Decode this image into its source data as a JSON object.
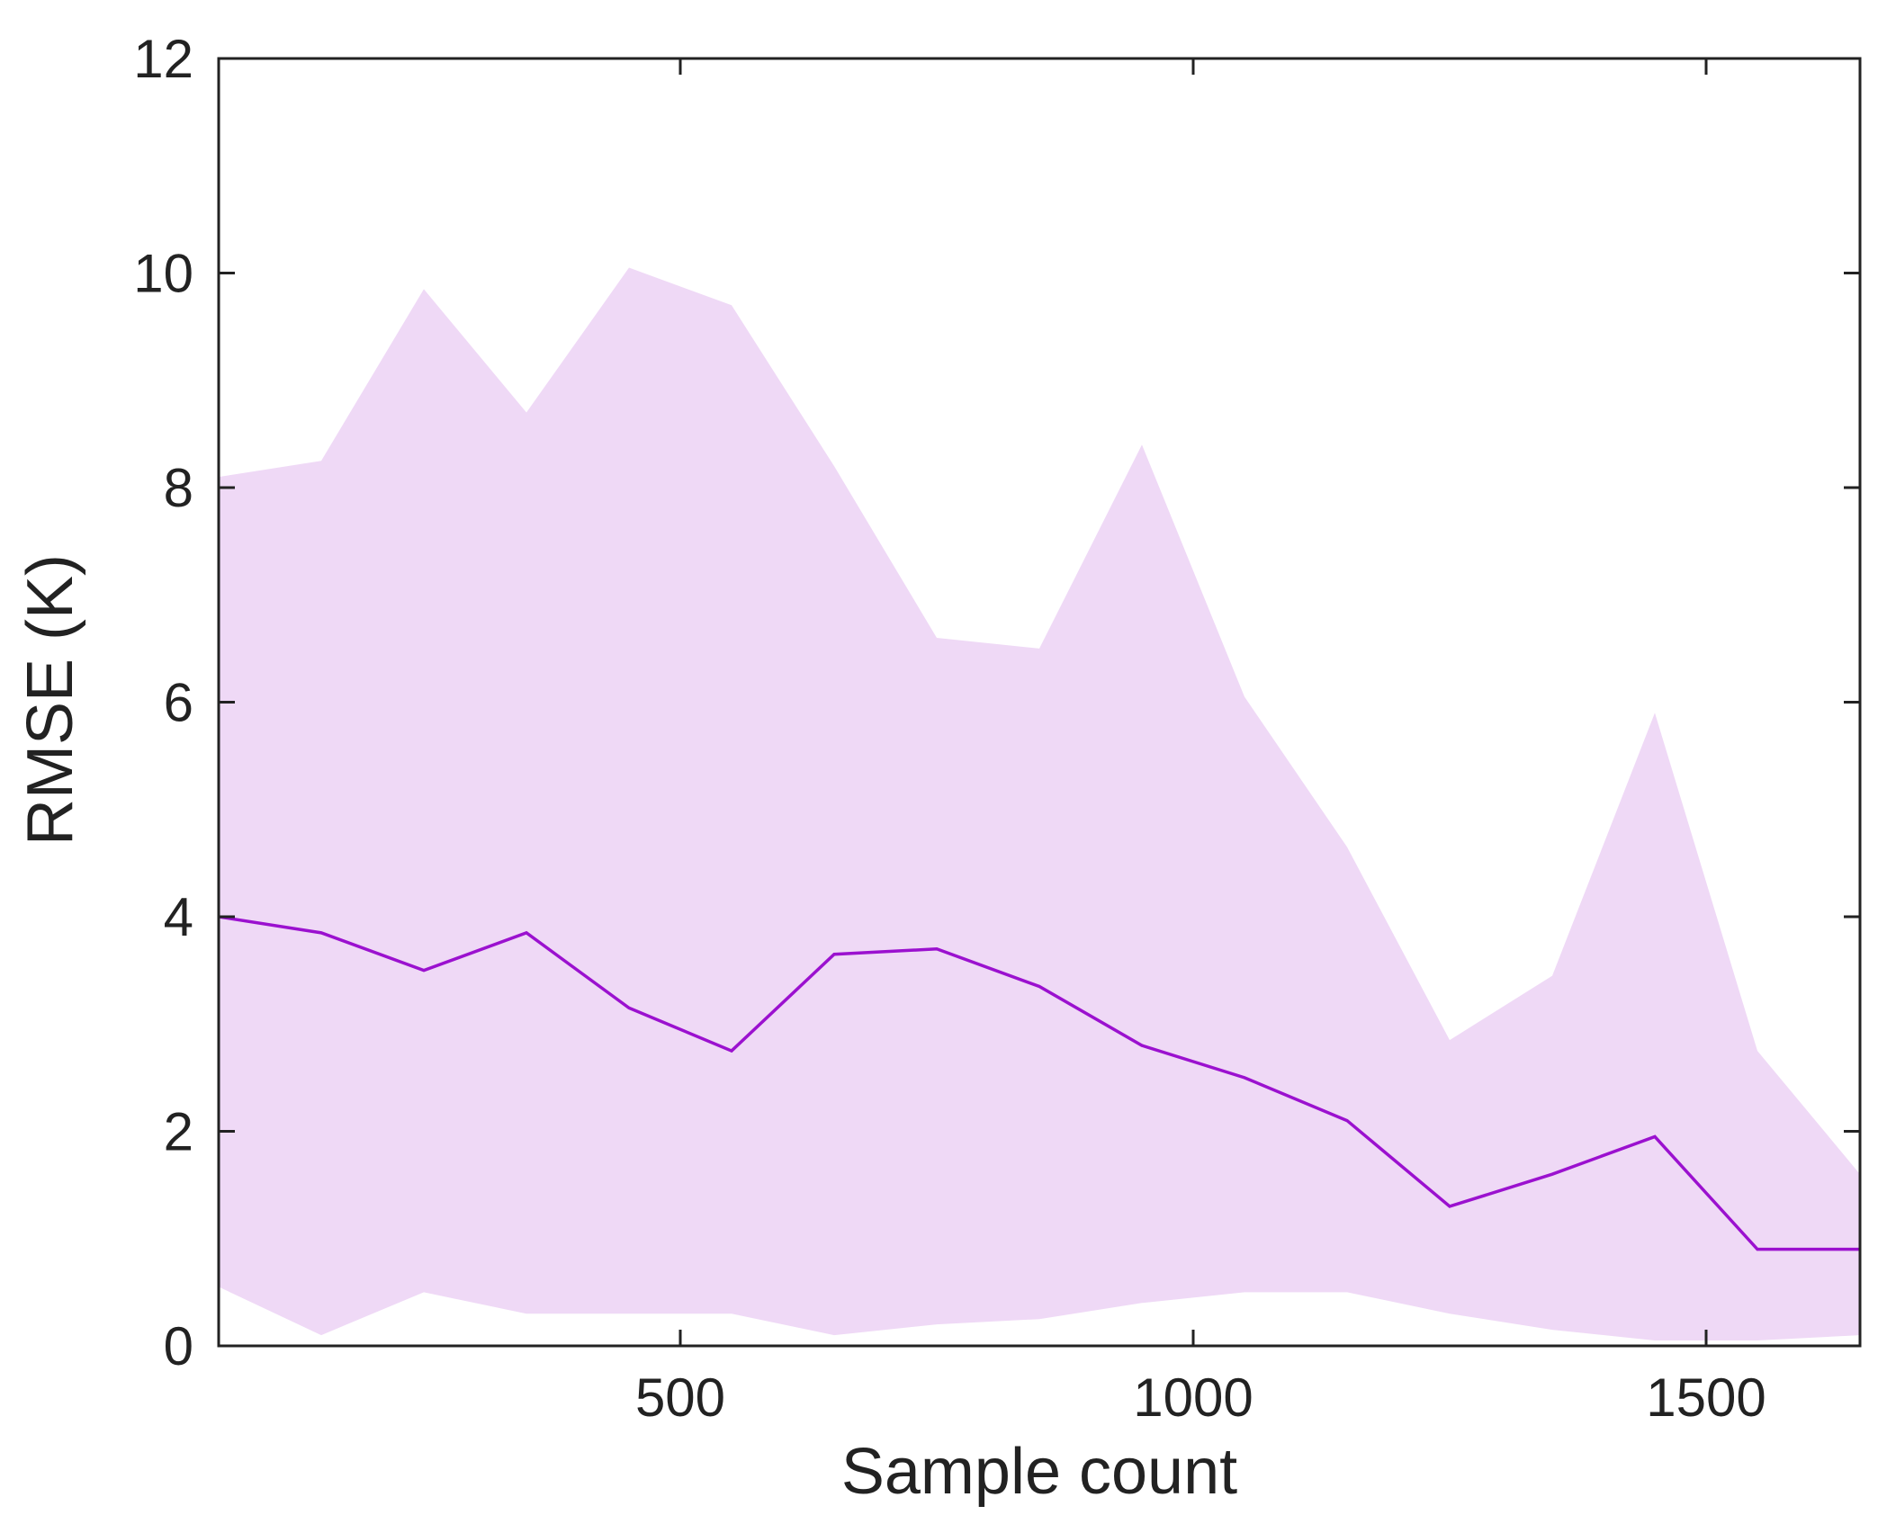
{
  "chart_data": {
    "type": "area",
    "title": "",
    "xlabel": "Sample count",
    "ylabel": "RMSE (K)",
    "xlim": [
      50,
      1650
    ],
    "ylim": [
      0,
      12
    ],
    "xticks": [
      500,
      1000,
      1500
    ],
    "yticks": [
      0,
      2,
      4,
      6,
      8,
      10,
      12
    ],
    "grid": false,
    "legend": "none",
    "colors": {
      "line": "#9b11cf",
      "band": "#efd9f6",
      "axis": "#222222"
    },
    "x": [
      50,
      150,
      250,
      350,
      450,
      550,
      650,
      750,
      850,
      950,
      1050,
      1150,
      1250,
      1350,
      1450,
      1550,
      1650
    ],
    "series": [
      {
        "values": [
          4.0,
          3.85,
          3.5,
          3.85,
          3.15,
          2.75,
          3.65,
          3.7,
          3.35,
          2.8,
          2.5,
          2.1,
          1.3,
          1.6,
          1.95,
          0.9,
          0.9
        ]
      }
    ],
    "band": {
      "upper": [
        8.1,
        8.25,
        9.85,
        8.7,
        10.05,
        9.7,
        8.2,
        6.6,
        6.5,
        8.4,
        6.05,
        4.65,
        2.85,
        3.45,
        5.9,
        2.75,
        1.6
      ],
      "lower": [
        0.55,
        0.1,
        0.5,
        0.3,
        0.3,
        0.3,
        0.1,
        0.2,
        0.25,
        0.4,
        0.5,
        0.5,
        0.3,
        0.15,
        0.05,
        0.05,
        0.1
      ]
    }
  }
}
